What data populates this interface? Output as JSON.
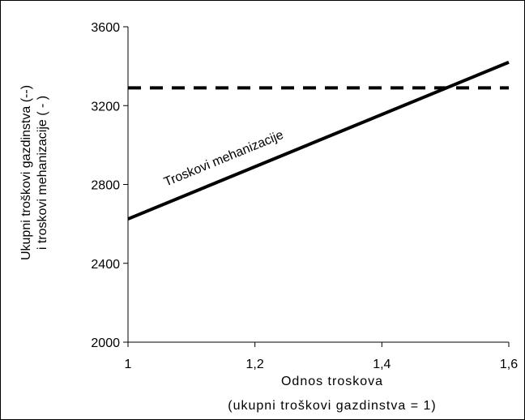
{
  "chart_data": {
    "type": "line",
    "title": "",
    "xlabel_lines": [
      "Odnos troskova",
      "(ukupni troškovi gazdinstva = 1)"
    ],
    "ylabel_lines": [
      "Ukupni troškovi gazdinstva (--)",
      "i troskovi mehanizacije ( - )"
    ],
    "xlim": [
      1,
      1.6
    ],
    "ylim": [
      2000,
      3600
    ],
    "grid": false,
    "x_ticks": [
      {
        "value": 1.0,
        "label": "1"
      },
      {
        "value": 1.2,
        "label": "1,2"
      },
      {
        "value": 1.4,
        "label": "1,4"
      },
      {
        "value": 1.6,
        "label": "1,6"
      }
    ],
    "y_ticks": [
      {
        "value": 2000,
        "label": "2000"
      },
      {
        "value": 2400,
        "label": "2400"
      },
      {
        "value": 2800,
        "label": "2800"
      },
      {
        "value": 3200,
        "label": "3200"
      },
      {
        "value": 3600,
        "label": "3600"
      }
    ],
    "series": [
      {
        "x": [
          1.0,
          1.6
        ],
        "y": [
          3290,
          3290
        ],
        "style": "dashed",
        "color": "#000000"
      },
      {
        "name": "Troskovi mehanizacije",
        "x": [
          1.0,
          1.6
        ],
        "y": [
          2625,
          3420
        ],
        "style": "solid",
        "color": "#000000"
      }
    ],
    "annotations": [
      {
        "text": "Troskovi mehanizacije",
        "x": 1.06,
        "y": 2790
      }
    ]
  }
}
